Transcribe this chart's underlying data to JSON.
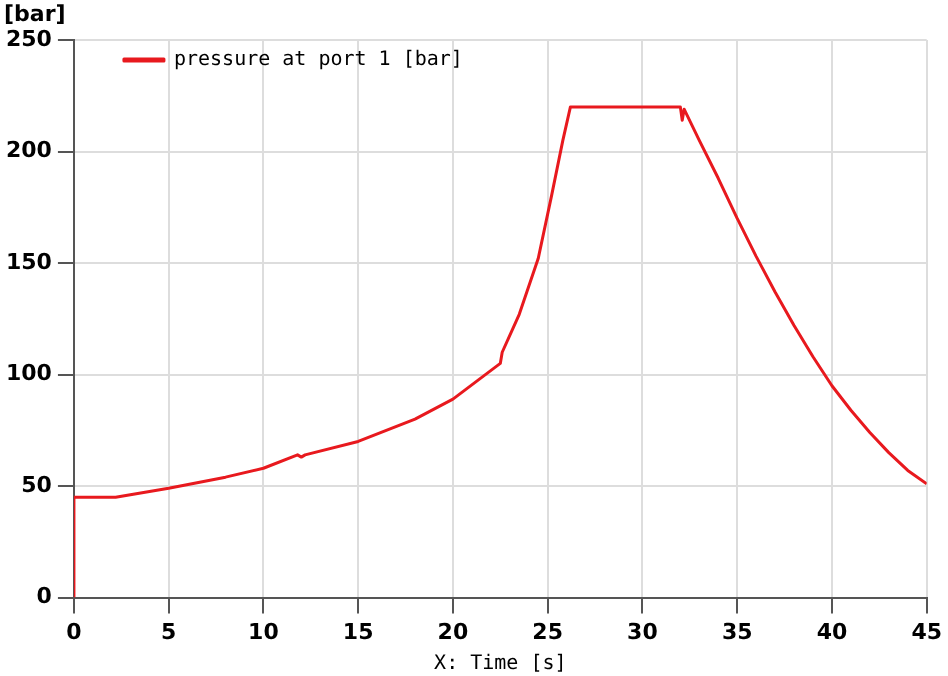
{
  "chart_data": {
    "type": "line",
    "ylabel": "[bar]",
    "xlabel": "X: Time [s]",
    "xlim": [
      0,
      45
    ],
    "xticks": [
      0,
      5,
      10,
      15,
      20,
      25,
      30,
      35,
      40,
      45
    ],
    "ylim": [
      0,
      250
    ],
    "yticks": [
      0,
      50,
      100,
      150,
      200,
      250
    ],
    "grid": true,
    "legend": "top left",
    "marker": "none",
    "line_style": "solid",
    "series": [
      {
        "name": "pressure at port 1 [bar]",
        "color": "#e8191e",
        "x": [
          0,
          0,
          2.2,
          5,
          8,
          10,
          11.8,
          12,
          12.2,
          15,
          18,
          20,
          22.5,
          22.6,
          23.5,
          24.5,
          25.2,
          25.8,
          26.2,
          30,
          32,
          32.1,
          32.2,
          33,
          34,
          35,
          36,
          37,
          38,
          39,
          40,
          41,
          42,
          43,
          44,
          45
        ],
        "values": [
          0,
          45,
          45,
          49,
          54,
          58,
          64,
          63,
          64,
          70,
          80,
          89,
          105,
          110,
          127,
          152,
          180,
          205,
          220,
          220,
          220,
          214,
          219,
          205,
          188,
          170,
          153,
          137,
          122,
          108,
          95,
          84,
          74,
          65,
          57,
          51
        ]
      }
    ]
  }
}
